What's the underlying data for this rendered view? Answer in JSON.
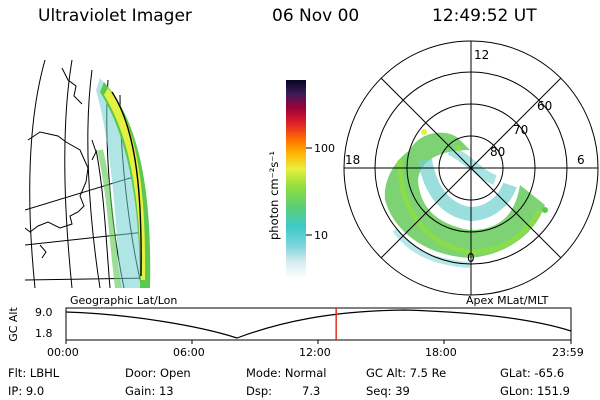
{
  "header": {
    "instrument": "Ultraviolet Imager",
    "date": "06 Nov 00",
    "time": "12:49:52 UT"
  },
  "colorbar": {
    "unit_label": "photon cm⁻²s⁻¹",
    "ticks": [
      "100",
      "10"
    ]
  },
  "polar": {
    "mlt_labels": {
      "top": "12",
      "left": "18",
      "right": "6",
      "bottom": "0"
    },
    "lat_labels": [
      "60",
      "70",
      "80"
    ]
  },
  "timeline": {
    "left_caption": "Geographic Lat/Lon",
    "right_caption": "Apex MLat/MLT",
    "axis_label": "GC Alt",
    "y_ticks": [
      "9.0",
      "1.8"
    ],
    "x_ticks": [
      "00:00",
      "06:00",
      "12:00",
      "18:00",
      "23:59"
    ],
    "current_time_fraction": 0.535
  },
  "status": {
    "flt": "Flt: LBHL",
    "ip": "IP: 9.0",
    "door": "Door: Open",
    "gain": "Gain: 13",
    "mode": "Mode: Normal",
    "dsp_label": "Dsp:",
    "dsp_value": "7.3",
    "gcalt": "GC Alt: 7.5 Re",
    "seq": "Seq: 39",
    "glat": "GLat: -65.6",
    "glon": "GLon: 151.9"
  }
}
